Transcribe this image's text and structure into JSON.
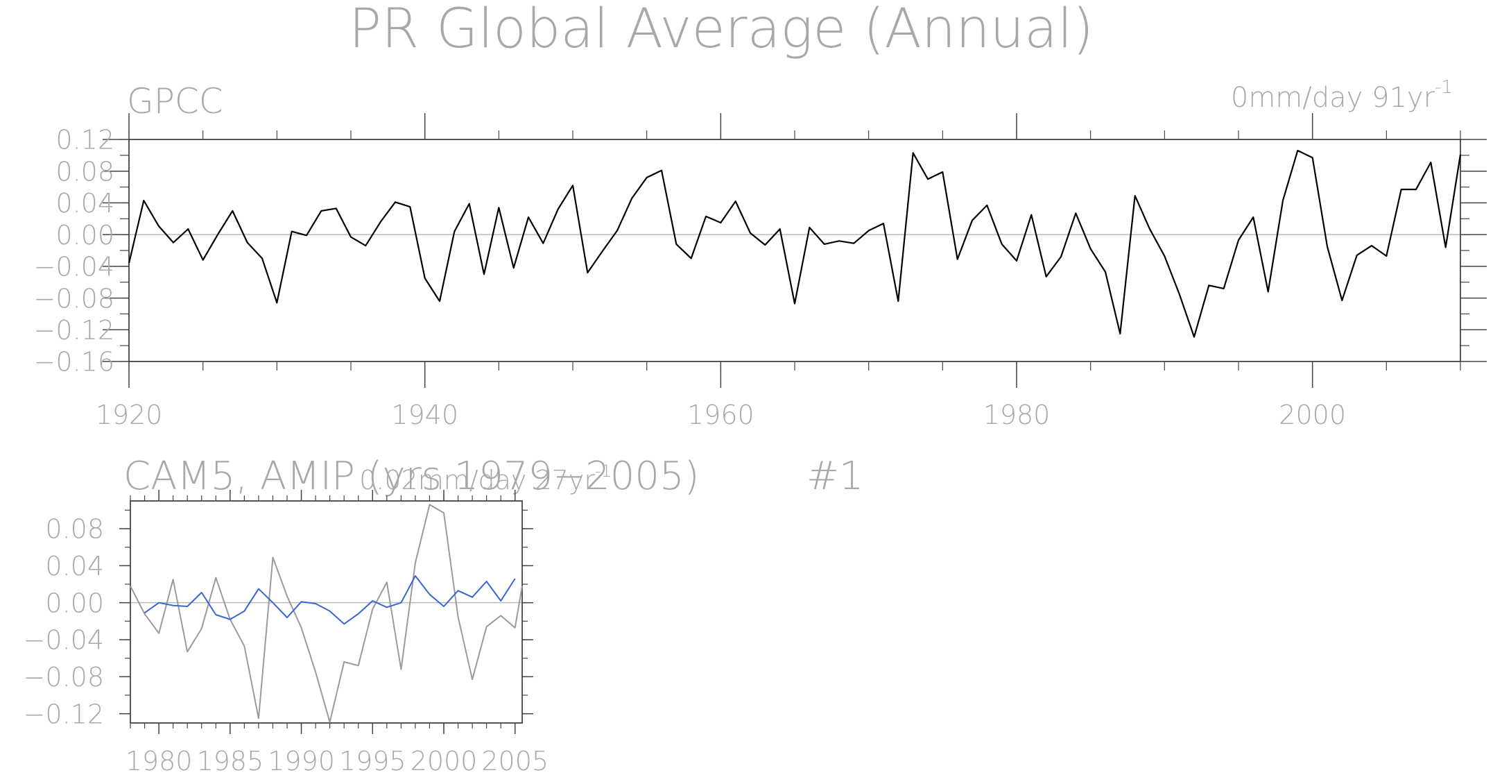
{
  "title": "PR Global Average (Annual)",
  "colors": {
    "text": "#a8a8a8",
    "axis": "#444444",
    "zero_line": "#bbbbbb",
    "obs_line": "#000000",
    "model_line": "#3a63d6",
    "obs_in_panel2": "#9a9a9a"
  },
  "chart_data": [
    {
      "type": "line",
      "panel_title": "GPCC",
      "trend_label": "0mm/day 91yr",
      "trend_superscript": "-1",
      "x_ticks": [
        "1920",
        "1940",
        "1960",
        "1980",
        "2000"
      ],
      "y_ticks": [
        "0.12",
        "0.08",
        "0.04",
        "0.00",
        "−0.04",
        "−0.08",
        "−0.12",
        "−0.16"
      ],
      "xlim": [
        1920,
        2010
      ],
      "ylim": [
        -0.16,
        0.12
      ],
      "reference_line": 0,
      "series": [
        {
          "x_start": 1920,
          "values": [
            -0.036,
            0.043,
            0.011,
            -0.01,
            0.007,
            -0.032,
            0.0,
            0.03,
            -0.01,
            -0.03,
            -0.086,
            0.004,
            -0.001,
            0.03,
            0.033,
            -0.003,
            -0.014,
            0.016,
            0.041,
            0.035,
            -0.055,
            -0.084,
            0.004,
            0.039,
            -0.05,
            0.034,
            -0.042,
            0.022,
            -0.011,
            0.032,
            0.062,
            -0.048,
            -0.021,
            0.005,
            0.046,
            0.072,
            0.081,
            -0.012,
            -0.03,
            0.023,
            0.015,
            0.042,
            0.002,
            -0.013,
            0.007,
            -0.087,
            0.009,
            -0.012,
            -0.008,
            -0.011,
            0.005,
            0.014,
            -0.084,
            0.103,
            0.07,
            0.079,
            -0.031,
            0.018,
            0.037,
            -0.012,
            -0.033,
            0.025,
            -0.053,
            -0.028,
            0.027,
            -0.018,
            -0.047,
            -0.125,
            0.049,
            0.007,
            -0.027,
            -0.075,
            -0.129,
            -0.064,
            -0.068,
            -0.007,
            0.022,
            -0.072,
            0.043,
            0.106,
            0.097,
            -0.015,
            -0.083,
            -0.026,
            -0.014,
            -0.027,
            0.057,
            0.057,
            0.091,
            -0.016,
            0.101
          ]
        }
      ]
    },
    {
      "type": "line",
      "panel_title": "CAM5, AMIP (yrs 1979−2005)",
      "panel_id": "#1",
      "trend_label": "0.02mm/day 27yr",
      "trend_superscript": "-1",
      "x_ticks": [
        "1980",
        "1985",
        "1990",
        "1995",
        "2000",
        "2005"
      ],
      "y_ticks": [
        "0.08",
        "0.04",
        "0.00",
        "−0.04",
        "−0.08",
        "−0.12"
      ],
      "xlim": [
        1978,
        2005.5
      ],
      "ylim": [
        -0.13,
        0.11
      ],
      "reference_line": 0,
      "series": [
        {
          "role": "observations",
          "x_start": 1978,
          "values": [
            0.018,
            -0.012,
            -0.033,
            0.025,
            -0.053,
            -0.028,
            0.027,
            -0.018,
            -0.047,
            -0.125,
            0.049,
            0.007,
            -0.027,
            -0.075,
            -0.129,
            -0.064,
            -0.068,
            -0.007,
            0.022,
            -0.072,
            0.043,
            0.106,
            0.097,
            -0.015,
            -0.083,
            -0.026,
            -0.014,
            -0.027,
            0.018
          ]
        },
        {
          "role": "model",
          "x_start": 1979,
          "values": [
            -0.011,
            0.0,
            -0.003,
            -0.004,
            0.011,
            -0.013,
            -0.018,
            -0.009,
            0.015,
            0.0,
            -0.016,
            0.001,
            -0.001,
            -0.009,
            -0.023,
            -0.012,
            0.002,
            -0.005,
            0.0,
            0.029,
            0.009,
            -0.004,
            0.013,
            0.006,
            0.023,
            0.002,
            0.026
          ]
        }
      ]
    }
  ]
}
